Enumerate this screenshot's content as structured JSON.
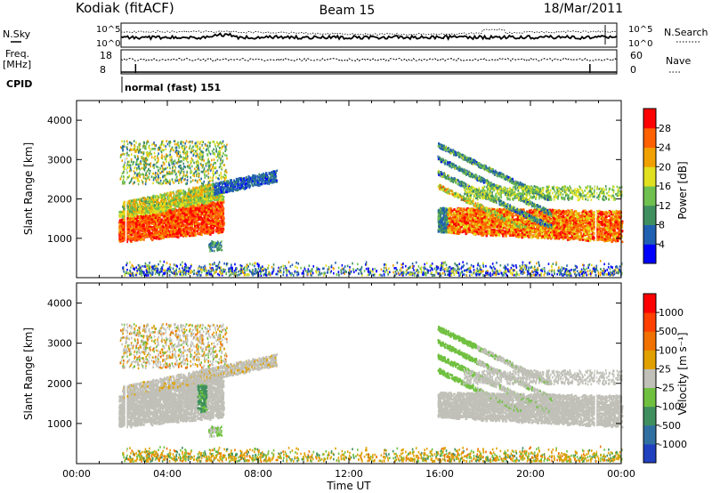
{
  "header": {
    "station": "Kodiak (fitACF)",
    "beam": "Beam 15",
    "date": "18/Mar/2011"
  },
  "status_panels": {
    "nsky_label": "N.Sky",
    "nsearch_label": "N.Search",
    "nsky_ticks": [
      "10^5",
      "10^0"
    ],
    "nsearch_ticks": [
      "10^5",
      "10^0"
    ],
    "freq_label": "Freq.",
    "freq_unit": "[MHz]",
    "freq_ticks": [
      "18",
      "8"
    ],
    "nave_label": "Nave",
    "nave_ticks": [
      "60",
      "0"
    ],
    "cpid_label": "CPID",
    "cpid_value": "normal (fast) 151"
  },
  "chart_data": [
    {
      "type": "heatmap",
      "name": "power",
      "ylabel": "Slant Range [km]",
      "xlabel": "",
      "ylim": [
        0,
        4500
      ],
      "yticks": [
        "1000",
        "2000",
        "3000",
        "4000"
      ],
      "ytick_values": [
        1000,
        2000,
        3000,
        4000
      ],
      "xlim_hours": [
        0,
        24
      ],
      "colorbar": {
        "label": "Power [dB]",
        "ticks": [
          "4",
          "8",
          "12",
          "16",
          "20",
          "24",
          "28"
        ],
        "tick_values": [
          4,
          8,
          12,
          16,
          20,
          24,
          28
        ],
        "range": [
          0,
          32
        ],
        "colors": [
          "#0000ff",
          "#2060b0",
          "#3f8f5f",
          "#6fc04f",
          "#e0e020",
          "#f0a000",
          "#ff6000",
          "#ff0000"
        ]
      }
    },
    {
      "type": "heatmap",
      "name": "velocity",
      "ylabel": "Slant Range [km]",
      "xlabel": "Time UT",
      "ylim": [
        0,
        4500
      ],
      "yticks": [
        "1000",
        "2000",
        "3000",
        "4000"
      ],
      "ytick_values": [
        1000,
        2000,
        3000,
        4000
      ],
      "xlim_hours": [
        0,
        24
      ],
      "xticks": [
        "00:00",
        "04:00",
        "08:00",
        "12:00",
        "16:00",
        "20:00",
        "00:00"
      ],
      "xtick_values": [
        0,
        4,
        8,
        12,
        16,
        20,
        24
      ],
      "colorbar": {
        "label": "Velocity [m s⁻¹]",
        "ticks": [
          "1000",
          "500",
          "100",
          "25",
          "-25",
          "-100",
          "-500",
          "-1000"
        ],
        "colors": [
          "#2040c0",
          "#3070a0",
          "#3f8f5f",
          "#70c040",
          "#c0c0b8",
          "#e0a000",
          "#f07000",
          "#ff4000",
          "#ff0000"
        ]
      }
    }
  ]
}
